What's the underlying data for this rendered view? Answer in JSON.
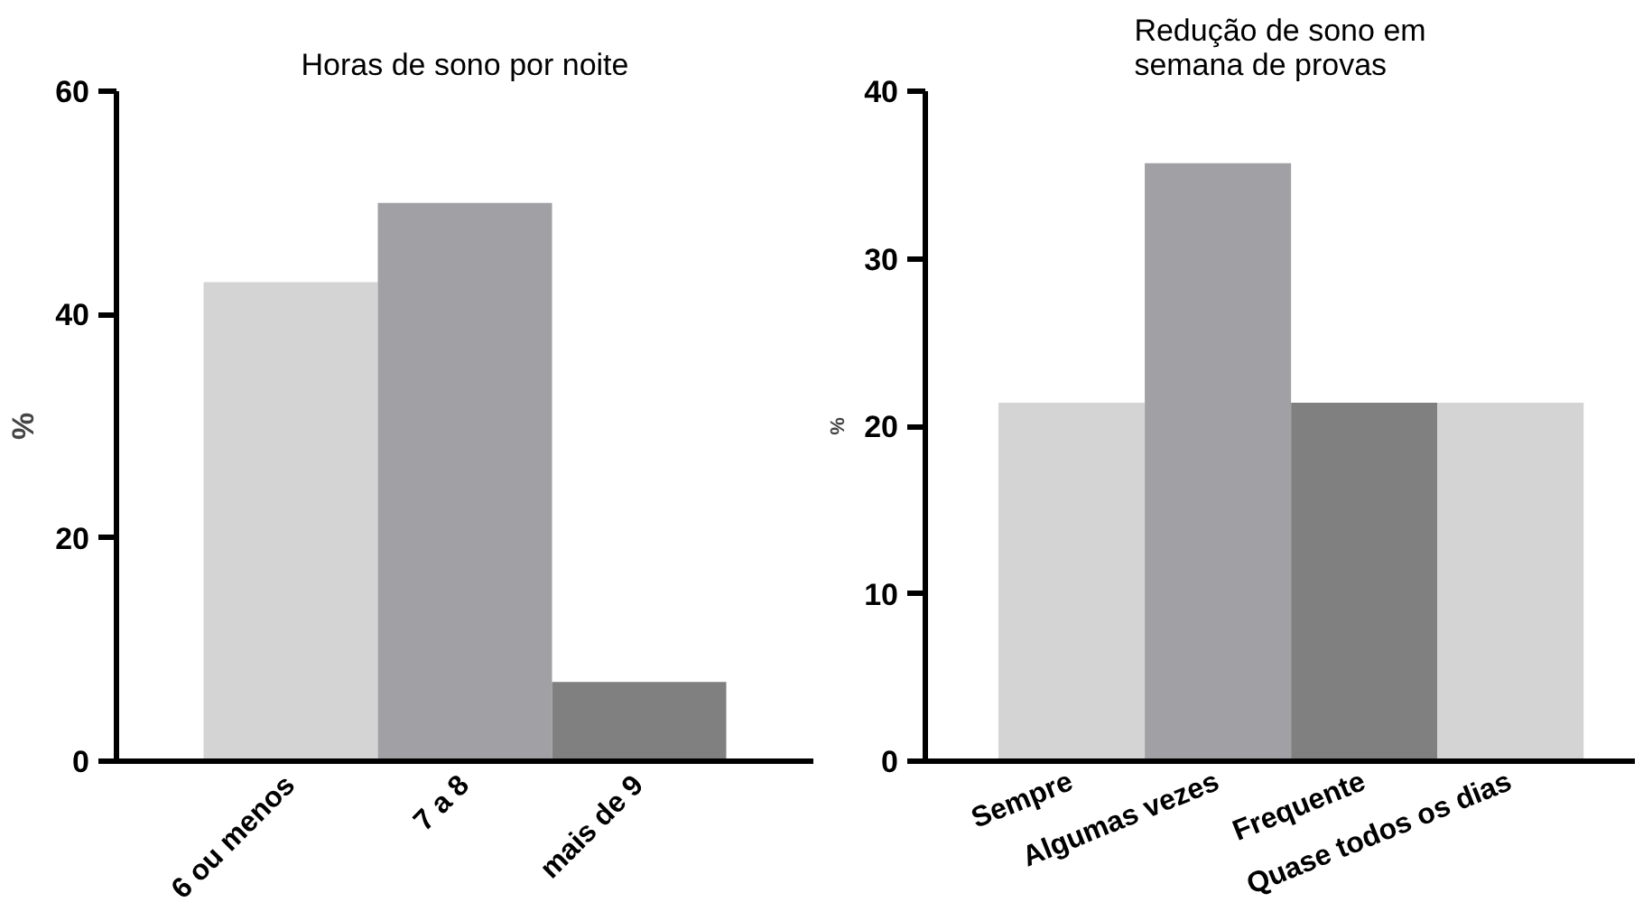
{
  "chart_data": [
    {
      "type": "bar",
      "title": "Horas de sono por noite",
      "ylabel": "%",
      "categories": [
        "6 ou menos",
        "7 a 8",
        "mais de 9"
      ],
      "values": [
        42.9,
        50,
        7.1
      ],
      "colors": [
        "#d4d4d4",
        "#a1a0a5",
        "#808080"
      ],
      "ylim": [
        0,
        60
      ],
      "yticks": [
        0,
        20,
        40,
        60
      ]
    },
    {
      "type": "bar",
      "title": "Redução de sono em\nsemana de provas",
      "ylabel": "%",
      "categories": [
        "Sempre",
        "Algumas vezes",
        "Frequente",
        "Quase todos os dias"
      ],
      "values": [
        21.4,
        35.7,
        21.4,
        21.4
      ],
      "colors": [
        "#d4d4d4",
        "#a1a0a5",
        "#808080",
        "#d4d4d4"
      ],
      "ylim": [
        0,
        40
      ],
      "yticks": [
        0,
        10,
        20,
        30,
        40
      ]
    }
  ]
}
